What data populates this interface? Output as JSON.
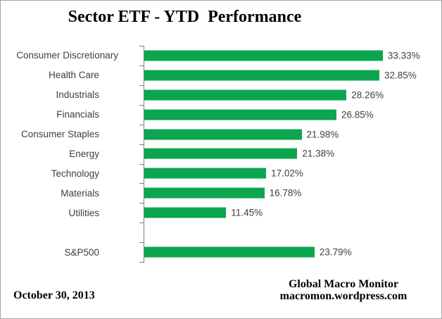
{
  "title": "Sector ETF - YTD  Performance",
  "footer": {
    "date": "October 30, 2013",
    "credit_line1": "Global Macro Monitor",
    "credit_line2": "macromon.wordpress.com"
  },
  "colors": {
    "bar": "#0ba64f",
    "axis": "#808080",
    "label_text": "#404040",
    "border": "#a6a6a6"
  },
  "chart_data": {
    "type": "bar",
    "orientation": "horizontal",
    "title": "Sector ETF - YTD  Performance",
    "categories": [
      "Consumer Discretionary",
      "Health Care",
      "Industrials",
      "Financials",
      "Consumer Staples",
      "Energy",
      "Technology",
      "Materials",
      "Utilities",
      "",
      "S&P500"
    ],
    "values": [
      33.33,
      32.85,
      28.26,
      26.85,
      21.98,
      21.38,
      17.02,
      16.78,
      11.45,
      null,
      23.79
    ],
    "value_labels": [
      "33.33%",
      "32.85%",
      "28.26%",
      "26.85%",
      "21.98%",
      "21.38%",
      "17.02%",
      "16.78%",
      "11.45%",
      "",
      "23.79%"
    ],
    "xlabel": "",
    "ylabel": "",
    "xlim": [
      0,
      41.8
    ],
    "grid": false,
    "legend": null,
    "data_labels": true
  }
}
